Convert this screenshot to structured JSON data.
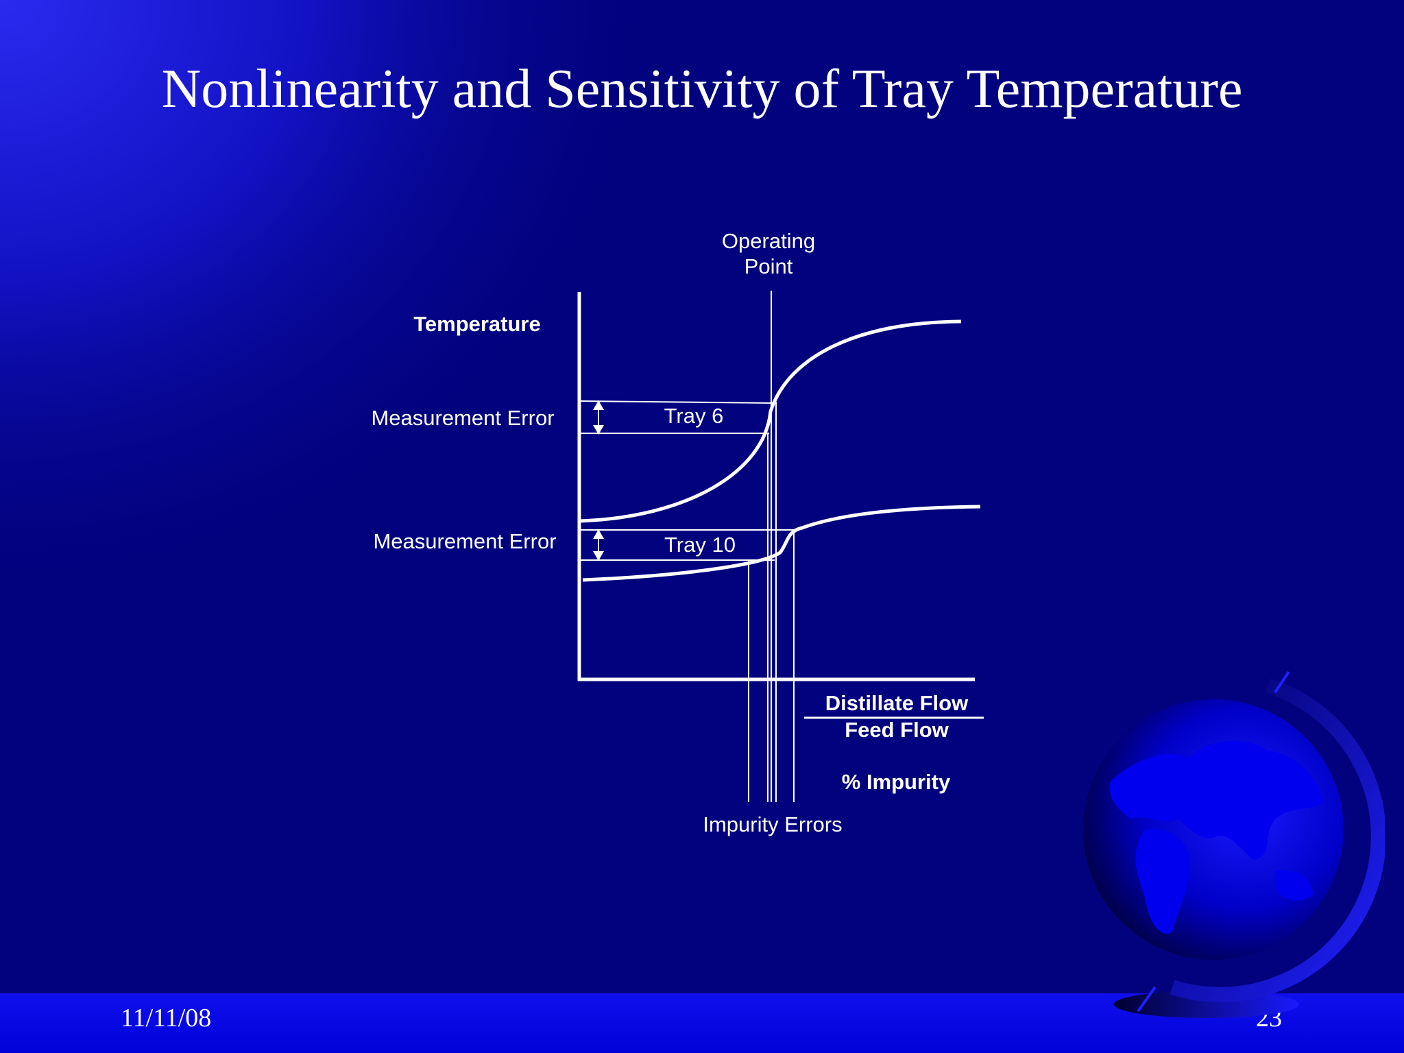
{
  "slide": {
    "title": "Nonlinearity and Sensitivity of Tray Temperature",
    "footer": {
      "date": "11/11/08",
      "page_number": "23"
    },
    "colors": {
      "background": "#02027e",
      "accent_bar": "#0a0ae8",
      "ink": "#ffffff"
    }
  },
  "diagram": {
    "labels": {
      "operating_point_line1": "Operating",
      "operating_point_line2": "Point",
      "y_axis": "Temperature",
      "measurement_error_upper": "Measurement Error",
      "measurement_error_lower": "Measurement Error",
      "tray6": "Tray 6",
      "tray10": "Tray 10",
      "x_axis_numerator": "Distillate Flow",
      "x_axis_denominator": "Feed Flow",
      "x_axis_impurity": "% Impurity",
      "impurity_errors": "Impurity Errors"
    },
    "curves": [
      {
        "name": "Tray 6",
        "shape": "steep sigmoid at operating point"
      },
      {
        "name": "Tray 10",
        "shape": "shallow sigmoid at operating point"
      }
    ],
    "icons": {
      "error_arrow": "double-headed-arrow-icon",
      "decoration": "globe-icon"
    }
  }
}
